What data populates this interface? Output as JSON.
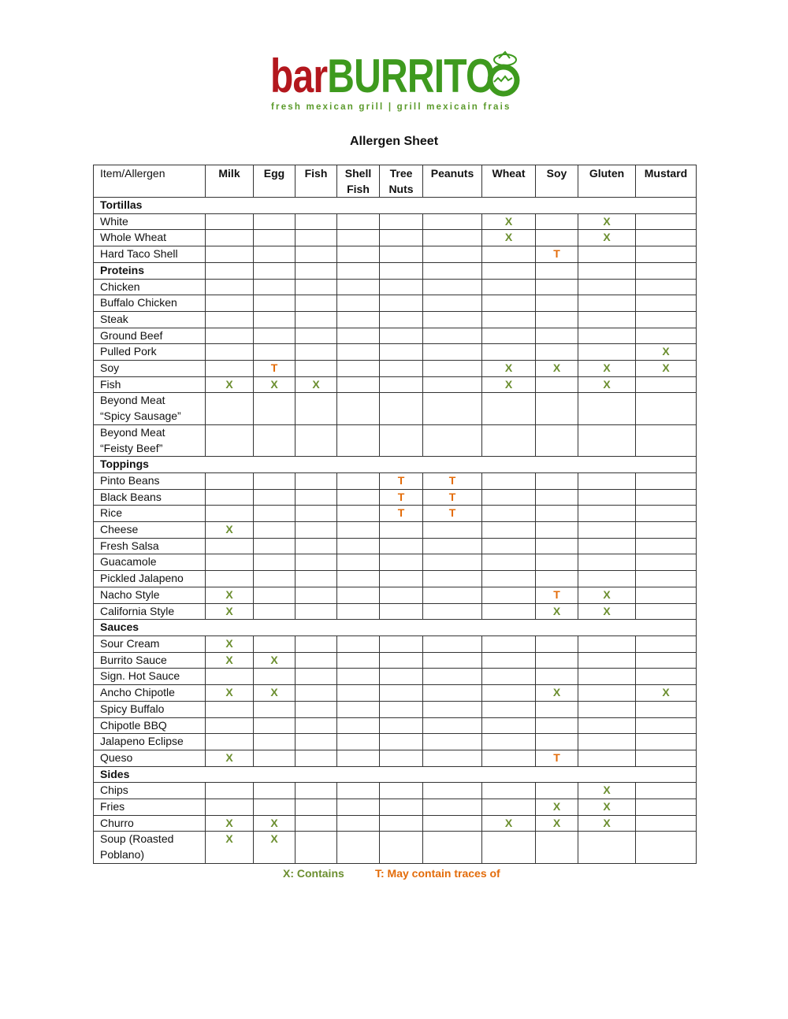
{
  "logo": {
    "text_bar": "bar",
    "text_burrito": "BURRITO",
    "tagline": "fresh mexican grill | grill mexicain frais",
    "colors": {
      "bar": "#b3171d",
      "burrito": "#3e9a1e"
    }
  },
  "title": "Allergen Sheet",
  "table": {
    "columns": [
      "Item/Allergen",
      "Milk",
      "Egg",
      "Fish",
      "Shell Fish",
      "Tree Nuts",
      "Peanuts",
      "Wheat",
      "Soy",
      "Gluten",
      "Mustard"
    ],
    "rows": [
      {
        "section": true,
        "label": "Tortillas",
        "span": true
      },
      {
        "label": "White",
        "cells": [
          "",
          "",
          "",
          "",
          "",
          "",
          "X",
          "",
          "X",
          ""
        ]
      },
      {
        "label": "Whole Wheat",
        "cells": [
          "",
          "",
          "",
          "",
          "",
          "",
          "X",
          "",
          "X",
          ""
        ]
      },
      {
        "label": "Hard Taco Shell",
        "cells": [
          "",
          "",
          "",
          "",
          "",
          "",
          "",
          "T",
          "",
          ""
        ]
      },
      {
        "section": true,
        "label": "Proteins",
        "span": false
      },
      {
        "label": "Chicken",
        "cells": [
          "",
          "",
          "",
          "",
          "",
          "",
          "",
          "",
          "",
          ""
        ]
      },
      {
        "label": "Buffalo Chicken",
        "cells": [
          "",
          "",
          "",
          "",
          "",
          "",
          "",
          "",
          "",
          ""
        ]
      },
      {
        "label": "Steak",
        "cells": [
          "",
          "",
          "",
          "",
          "",
          "",
          "",
          "",
          "",
          ""
        ]
      },
      {
        "label": "Ground Beef",
        "cells": [
          "",
          "",
          "",
          "",
          "",
          "",
          "",
          "",
          "",
          ""
        ]
      },
      {
        "label": "Pulled Pork",
        "cells": [
          "",
          "",
          "",
          "",
          "",
          "",
          "",
          "",
          "",
          "X"
        ]
      },
      {
        "label": "Soy",
        "cells": [
          "",
          "T",
          "",
          "",
          "",
          "",
          "X",
          "X",
          "X",
          "X"
        ]
      },
      {
        "label": "Fish",
        "cells": [
          "X",
          "X",
          "X",
          "",
          "",
          "",
          "X",
          "",
          "X",
          ""
        ]
      },
      {
        "label": "Beyond Meat",
        "label2": "“Spicy Sausage”",
        "cells": [
          "",
          "",
          "",
          "",
          "",
          "",
          "",
          "",
          "",
          ""
        ]
      },
      {
        "label": "Beyond Meat",
        "label2": "“Feisty Beef”",
        "cells": [
          "",
          "",
          "",
          "",
          "",
          "",
          "",
          "",
          "",
          ""
        ]
      },
      {
        "section": true,
        "label": "Toppings",
        "span": true
      },
      {
        "label": "Pinto Beans",
        "cells": [
          "",
          "",
          "",
          "",
          "T",
          "T",
          "",
          "",
          "",
          ""
        ]
      },
      {
        "label": "Black Beans",
        "cells": [
          "",
          "",
          "",
          "",
          "T",
          "T",
          "",
          "",
          "",
          ""
        ]
      },
      {
        "label": "Rice",
        "cells": [
          "",
          "",
          "",
          "",
          "T",
          "T",
          "",
          "",
          "",
          ""
        ]
      },
      {
        "label": "Cheese",
        "cells": [
          "X",
          "",
          "",
          "",
          "",
          "",
          "",
          "",
          "",
          ""
        ]
      },
      {
        "label": "Fresh Salsa",
        "cells": [
          "",
          "",
          "",
          "",
          "",
          "",
          "",
          "",
          "",
          ""
        ]
      },
      {
        "label": "Guacamole",
        "cells": [
          "",
          "",
          "",
          "",
          "",
          "",
          "",
          "",
          "",
          ""
        ]
      },
      {
        "label": "Pickled Jalapeno",
        "cells": [
          "",
          "",
          "",
          "",
          "",
          "",
          "",
          "",
          "",
          ""
        ]
      },
      {
        "label": "Nacho Style",
        "cells": [
          "X",
          "",
          "",
          "",
          "",
          "",
          "",
          "T",
          "X",
          ""
        ]
      },
      {
        "label": "California Style",
        "cells": [
          "X",
          "",
          "",
          "",
          "",
          "",
          "",
          "X",
          "X",
          ""
        ]
      },
      {
        "section": true,
        "label": "Sauces",
        "span": true
      },
      {
        "label": "Sour Cream",
        "cells": [
          "X",
          "",
          "",
          "",
          "",
          "",
          "",
          "",
          "",
          ""
        ]
      },
      {
        "label": "Burrito Sauce",
        "cells": [
          "X",
          "X",
          "",
          "",
          "",
          "",
          "",
          "",
          "",
          ""
        ]
      },
      {
        "label": "Sign. Hot Sauce",
        "cells": [
          "",
          "",
          "",
          "",
          "",
          "",
          "",
          "",
          "",
          ""
        ]
      },
      {
        "label": "Ancho Chipotle",
        "cells": [
          "X",
          "X",
          "",
          "",
          "",
          "",
          "",
          "X",
          "",
          "X"
        ]
      },
      {
        "label": "Spicy Buffalo",
        "cells": [
          "",
          "",
          "",
          "",
          "",
          "",
          "",
          "",
          "",
          ""
        ]
      },
      {
        "label": "Chipotle BBQ",
        "cells": [
          "",
          "",
          "",
          "",
          "",
          "",
          "",
          "",
          "",
          ""
        ]
      },
      {
        "label": "Jalapeno Eclipse",
        "cells": [
          "",
          "",
          "",
          "",
          "",
          "",
          "",
          "",
          "",
          ""
        ]
      },
      {
        "label": "Queso",
        "cells": [
          "X",
          "",
          "",
          "",
          "",
          "",
          "",
          "T",
          "",
          ""
        ]
      },
      {
        "section": true,
        "label": "Sides",
        "span": true
      },
      {
        "label": "Chips",
        "cells": [
          "",
          "",
          "",
          "",
          "",
          "",
          "",
          "",
          "X",
          ""
        ]
      },
      {
        "label": "Fries",
        "cells": [
          "",
          "",
          "",
          "",
          "",
          "",
          "",
          "X",
          "X",
          ""
        ]
      },
      {
        "label": "Churro",
        "cells": [
          "X",
          "X",
          "",
          "",
          "",
          "",
          "X",
          "X",
          "X",
          ""
        ]
      },
      {
        "label": "Soup (Roasted",
        "label2": "Poblano)",
        "cells": [
          "X",
          "X",
          "",
          "",
          "",
          "",
          "",
          "",
          "",
          ""
        ]
      }
    ]
  },
  "legend": {
    "contains": "X: Contains",
    "traces": "T: May contain traces of",
    "colors": {
      "contains": "#6b8e2f",
      "traces": "#e36c0a"
    }
  }
}
